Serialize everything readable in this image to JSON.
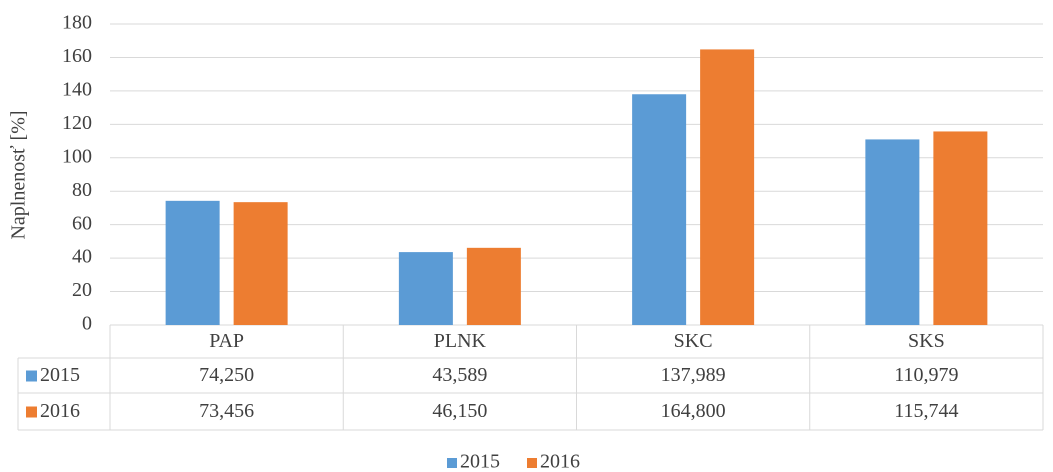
{
  "chart_data": {
    "type": "bar",
    "y_label": "Naplnenosť [%]",
    "categories": [
      "PAP",
      "PLNK",
      "SKC",
      "SKS"
    ],
    "series": [
      {
        "name": "2015",
        "color": "#5b9bd5",
        "values": [
          74.25,
          43.589,
          137.989,
          110.979
        ],
        "value_labels": [
          "74,250",
          "43,589",
          "137,989",
          "110,979"
        ]
      },
      {
        "name": "2016",
        "color": "#ed7d31",
        "values": [
          73.456,
          46.15,
          164.8,
          115.744
        ],
        "value_labels": [
          "73,456",
          "46,150",
          "164,800",
          "115,744"
        ]
      }
    ],
    "ylim": [
      0,
      180
    ],
    "yticks": [
      0,
      20,
      40,
      60,
      80,
      100,
      120,
      140,
      160,
      180
    ],
    "grid": true,
    "legend": "bottom"
  }
}
